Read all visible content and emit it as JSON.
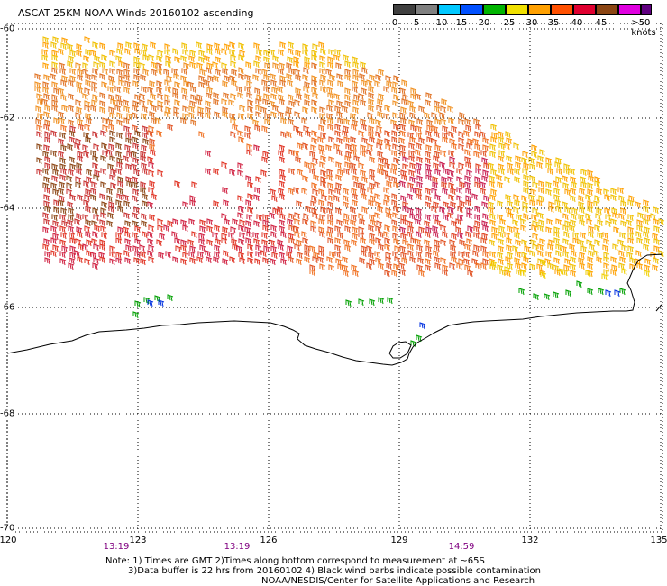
{
  "title": "ASCAT 25KM NOAA Winds 20160102 ascending",
  "scale": {
    "labels": [
      "0",
      "5",
      "10",
      "15",
      "20",
      "25",
      "30",
      "35",
      "40",
      "45",
      ">50 knots"
    ],
    "colors": [
      "#404040",
      "#808080",
      "#00c8ff",
      "#0050ff",
      "#00b400",
      "#f0e000",
      "#ffa000",
      "#ff5000",
      "#e00030",
      "#8b4513",
      "#e000e0",
      "#600080"
    ]
  },
  "axes": {
    "lat_labels": [
      "-60",
      "-62",
      "-64",
      "-66",
      "-68",
      "-70"
    ],
    "lon_labels": [
      "120",
      "123",
      "126",
      "129",
      "132",
      "135"
    ]
  },
  "times": [
    "13:19",
    "13:19",
    "14:59"
  ],
  "notes": {
    "line1": "Note: 1) Times are GMT 2)Times along bottom correspond to measurement at ~65S",
    "line2": "3)Data buffer is 22 hrs from 20160102 4) Black wind barbs indicate possible contamination",
    "line3": "NOAA/NESDIS/Center for Satellite Applications and Research"
  }
}
